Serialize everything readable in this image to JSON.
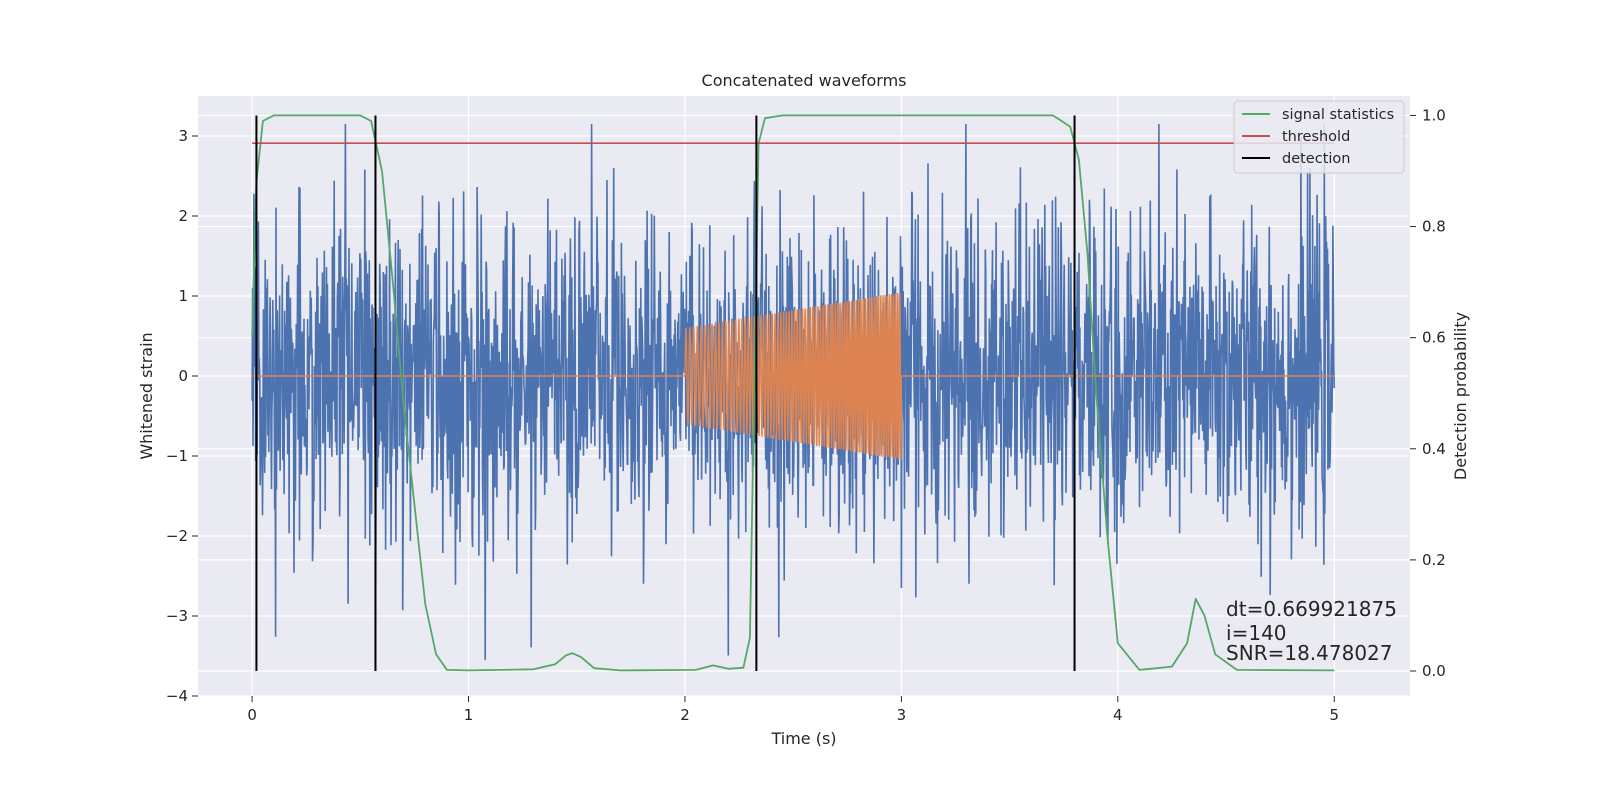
{
  "chart_data": {
    "type": "line",
    "title": "Concatenated waveforms",
    "xlabel": "Time (s)",
    "ylabel": "Whitened strain",
    "y2label": "Detection probability",
    "xlim": [
      -0.25,
      5.35
    ],
    "ylim": [
      -4.0,
      3.5
    ],
    "y2lim": [
      -0.045,
      1.035
    ],
    "xticks": [
      0,
      1,
      2,
      3,
      4,
      5
    ],
    "yticks": [
      -4,
      -3,
      -2,
      -1,
      0,
      1,
      2,
      3
    ],
    "y2ticks": [
      0.0,
      0.2,
      0.4,
      0.6,
      0.8,
      1.0
    ],
    "xtick_labels": [
      "0",
      "1",
      "2",
      "3",
      "4",
      "5"
    ],
    "ytick_labels": [
      "−4",
      "−3",
      "−2",
      "−1",
      "0",
      "1",
      "2",
      "3"
    ],
    "y2tick_labels": [
      "0.0",
      "0.2",
      "0.4",
      "0.6",
      "0.8",
      "1.0"
    ],
    "grid": true,
    "legend_position": "top-right",
    "legend": [
      {
        "label": "signal statistics",
        "color": "#55a868"
      },
      {
        "label": "threshold",
        "color": "#c44e52"
      },
      {
        "label": "detection",
        "color": "#000000"
      }
    ],
    "noise": {
      "color": "#4c72b0",
      "t_start": 0,
      "t_end": 5,
      "typical_amplitude": 1.0,
      "peak_amplitude": 3.15
    },
    "injected_signal": {
      "color": "#dd8452",
      "t_start": 2.0,
      "t_end": 3.0,
      "amplitude_start": 0.6,
      "amplitude_end": 1.05
    },
    "threshold": {
      "value": 0.95,
      "t_start": 0,
      "t_end": 5,
      "color": "#c44e52"
    },
    "detections": [
      0.02,
      0.57,
      2.33,
      3.8
    ],
    "signal_statistics": {
      "color": "#55a868",
      "t": [
        0.0,
        0.02,
        0.05,
        0.1,
        0.5,
        0.55,
        0.6,
        0.65,
        0.7,
        0.75,
        0.8,
        0.85,
        0.9,
        1.0,
        1.3,
        1.4,
        1.45,
        1.48,
        1.52,
        1.58,
        1.7,
        2.05,
        2.13,
        2.2,
        2.27,
        2.3,
        2.32,
        2.34,
        2.37,
        2.45,
        3.7,
        3.78,
        3.82,
        3.86,
        3.9,
        3.95,
        4.0,
        4.1,
        4.25,
        4.32,
        4.36,
        4.4,
        4.45,
        4.55,
        5.0
      ],
      "values": [
        0.6,
        0.88,
        0.99,
        1.0,
        1.0,
        0.99,
        0.9,
        0.7,
        0.48,
        0.3,
        0.12,
        0.03,
        0.002,
        0.001,
        0.003,
        0.012,
        0.028,
        0.032,
        0.025,
        0.005,
        0.001,
        0.002,
        0.01,
        0.004,
        0.006,
        0.06,
        0.5,
        0.95,
        0.995,
        1.0,
        1.0,
        0.98,
        0.92,
        0.75,
        0.5,
        0.25,
        0.05,
        0.002,
        0.008,
        0.05,
        0.13,
        0.1,
        0.03,
        0.002,
        0.001
      ]
    },
    "annotations": [
      {
        "text": "dt=0.669921875",
        "x": 4.5,
        "y": -3.0
      },
      {
        "text": " i=140",
        "x": 4.5,
        "y": -3.3
      },
      {
        "text": "SNR=18.478027",
        "x": 4.5,
        "y": -3.55
      }
    ]
  }
}
